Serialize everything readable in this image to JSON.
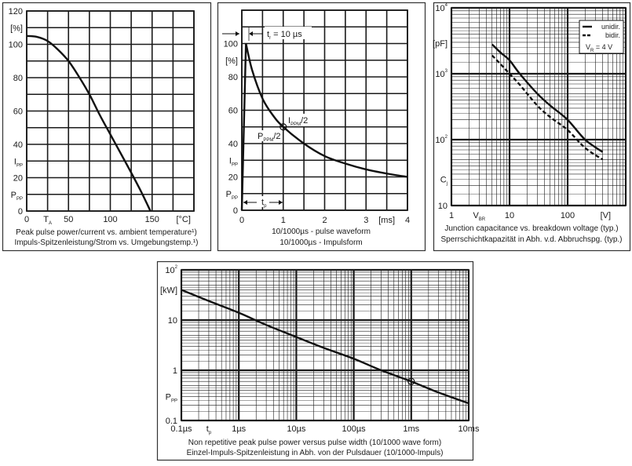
{
  "colors": {
    "line": "#111111",
    "grid": "#1a1a1a",
    "frame": "#333333",
    "background": "#ffffff"
  },
  "chart_data": [
    {
      "type": "line",
      "xscale": "linear",
      "yscale": "linear",
      "xlim": [
        0,
        200
      ],
      "ylim": [
        0,
        120
      ],
      "grid": true,
      "xgrid_step": 25,
      "ygrid_step": 10,
      "series": [
        {
          "points": [
            [
              0,
              105
            ],
            [
              12,
              104.5
            ],
            [
              25,
              102
            ],
            [
              37,
              97
            ],
            [
              50,
              90
            ],
            [
              62,
              81
            ],
            [
              75,
              70
            ],
            [
              87,
              58
            ],
            [
              100,
              46
            ],
            [
              112,
              35
            ],
            [
              125,
              23
            ],
            [
              137,
              11.5
            ],
            [
              148,
              0
            ]
          ]
        }
      ],
      "x_tick_labels": [
        {
          "v": 0,
          "t": "0"
        },
        {
          "v": 25,
          "t": "T",
          "sub": "A"
        },
        {
          "v": 50,
          "t": "50"
        },
        {
          "v": 100,
          "t": "100"
        },
        {
          "v": 150,
          "t": "150"
        },
        {
          "v": 187.5,
          "t": "[°C]"
        }
      ],
      "y_tick_labels": [
        {
          "v": 0,
          "t": "0"
        },
        {
          "v": 10,
          "t": "P",
          "sub": "PP"
        },
        {
          "v": 20,
          "t": "20"
        },
        {
          "v": 30,
          "t": "I",
          "sub": "PP"
        },
        {
          "v": 40,
          "t": "40"
        },
        {
          "v": 60,
          "t": "60"
        },
        {
          "v": 80,
          "t": "80"
        },
        {
          "v": 100,
          "t": "100"
        },
        {
          "v": 110,
          "t": "[%]"
        },
        {
          "v": 120,
          "t": "120"
        }
      ],
      "caption": [
        "Peak pulse power/current vs. ambient temperature¹)",
        "Impuls-Spitzenleistung/Strom vs. Umgebungstemp.¹)"
      ]
    },
    {
      "type": "line",
      "xscale": "linear",
      "yscale": "linear",
      "xlim": [
        0,
        4
      ],
      "ylim": [
        0,
        120
      ],
      "grid": true,
      "xgrid_step": 0.5,
      "ygrid_step": 10,
      "series": [
        {
          "points": [
            [
              0,
              0
            ],
            [
              0.1,
              100
            ],
            [
              0.25,
              84
            ],
            [
              0.5,
              67
            ],
            [
              0.75,
              57
            ],
            [
              1,
              50
            ],
            [
              1.5,
              40
            ],
            [
              2,
              32.5
            ],
            [
              2.5,
              28
            ],
            [
              3,
              24.5
            ],
            [
              3.5,
              22
            ],
            [
              4,
              20
            ]
          ]
        }
      ],
      "marker": {
        "x": 1,
        "y": 50
      },
      "annotations": [
        {
          "t": "t",
          "sub": "r",
          "after": " = 10 µs"
        },
        {
          "t": "I",
          "sub": "PPM",
          "after": "/2"
        },
        {
          "t": "P",
          "sub": "PPM",
          "after": "/2"
        },
        {
          "t": "t",
          "sub": "p",
          "after": ""
        }
      ],
      "x_tick_labels": [
        {
          "v": 0,
          "t": "0"
        },
        {
          "v": 1,
          "t": "1"
        },
        {
          "v": 2,
          "t": "2"
        },
        {
          "v": 3,
          "t": "3"
        },
        {
          "v": 3.5,
          "t": "[ms]"
        },
        {
          "v": 4,
          "t": "4"
        }
      ],
      "y_tick_labels": [
        {
          "v": 0,
          "t": "0"
        },
        {
          "v": 10,
          "t": "P",
          "sub": "PP"
        },
        {
          "v": 20,
          "t": "20"
        },
        {
          "v": 30,
          "t": "I",
          "sub": "PP"
        },
        {
          "v": 40,
          "t": "40"
        },
        {
          "v": 60,
          "t": "60"
        },
        {
          "v": 80,
          "t": "80"
        },
        {
          "v": 90,
          "t": "[%]"
        },
        {
          "v": 100,
          "t": "100"
        }
      ],
      "caption": [
        "10/1000µs - pulse waveform",
        "10/1000µs - Impulsform"
      ]
    },
    {
      "type": "line",
      "xscale": "log",
      "yscale": "log",
      "xlim": [
        1,
        1000
      ],
      "ylim": [
        10,
        10000
      ],
      "grid": true,
      "series": [
        {
          "name": "unidir.",
          "dash": false,
          "points": [
            [
              5,
              2800
            ],
            [
              7,
              2100
            ],
            [
              10,
              1600
            ],
            [
              15,
              1000
            ],
            [
              30,
              500
            ],
            [
              50,
              330
            ],
            [
              100,
              200
            ],
            [
              200,
              100
            ],
            [
              400,
              65
            ]
          ]
        },
        {
          "name": "bidir.",
          "dash": true,
          "points": [
            [
              5,
              1900
            ],
            [
              7,
              1400
            ],
            [
              10,
              1000
            ],
            [
              15,
              680
            ],
            [
              30,
              330
            ],
            [
              50,
              220
            ],
            [
              100,
              140
            ],
            [
              200,
              75
            ],
            [
              400,
              50
            ]
          ]
        }
      ],
      "legend": {
        "position": "top-right",
        "note": {
          "t": "V",
          "sub": "R",
          "after": " = 4 V"
        }
      },
      "x_tick_labels": [
        {
          "v": 1,
          "t": "1"
        },
        {
          "v": 3,
          "t": "V",
          "sub": "BR"
        },
        {
          "v": 10,
          "t": "10"
        },
        {
          "v": 100,
          "t": "100"
        },
        {
          "v": 450,
          "t": "[V]"
        }
      ],
      "y_tick_labels": [
        {
          "v": 10,
          "t": "10"
        },
        {
          "v": 25,
          "t": "C",
          "sub": "j"
        },
        {
          "v": 100,
          "t": "10",
          "sup": "2"
        },
        {
          "v": 1000,
          "t": "10",
          "sup": "3"
        },
        {
          "v": 2900,
          "t": "[pF]"
        },
        {
          "v": 10000,
          "t": "10",
          "sup": "4"
        }
      ],
      "caption": [
        "Junction capacitance vs. breakdown voltage (typ.)",
        "Sperrschichtkapazität in Abh. v.d. Abbruchspg. (typ.)"
      ]
    },
    {
      "type": "line",
      "xscale": "log",
      "yscale": "log",
      "xlim": [
        0.1,
        10000
      ],
      "ylim": [
        0.1,
        100
      ],
      "grid": true,
      "series": [
        {
          "points": [
            [
              0.1,
              40
            ],
            [
              0.3,
              24
            ],
            [
              1,
              14
            ],
            [
              3,
              8
            ],
            [
              10,
              4.6
            ],
            [
              30,
              2.8
            ],
            [
              100,
              1.7
            ],
            [
              300,
              1
            ],
            [
              1000,
              0.6
            ],
            [
              3000,
              0.36
            ],
            [
              10000,
              0.22
            ]
          ]
        }
      ],
      "marker": {
        "x": 1000,
        "y": 0.6
      },
      "x_tick_labels": [
        {
          "v": 0.1,
          "t": "0.1µs"
        },
        {
          "v": 0.3,
          "t": "t",
          "sub": "p"
        },
        {
          "v": 1,
          "t": "1µs"
        },
        {
          "v": 10,
          "t": "10µs"
        },
        {
          "v": 100,
          "t": "100µs"
        },
        {
          "v": 1000,
          "t": "1ms"
        },
        {
          "v": 10000,
          "t": "10ms"
        }
      ],
      "y_tick_labels": [
        {
          "v": 0.1,
          "t": "0.1"
        },
        {
          "v": 0.3,
          "t": "P",
          "sub": "PP"
        },
        {
          "v": 1,
          "t": "1"
        },
        {
          "v": 10,
          "t": "10"
        },
        {
          "v": 40,
          "t": "[kW]"
        },
        {
          "v": 100,
          "t": "10",
          "sup": "2"
        }
      ],
      "caption": [
        "Non repetitive peak pulse power  versus pulse width (10/1000 wave form)",
        "Einzel-Impuls-Spitzenleistung in Abh. von der Pulsdauer  (10/1000-Impuls)"
      ]
    }
  ]
}
